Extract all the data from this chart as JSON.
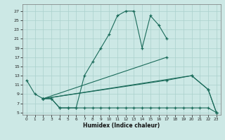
{
  "bg_color": "#cce8e5",
  "grid_color": "#aad0cc",
  "line_color": "#1a6b5a",
  "xlabel": "Humidex (Indice chaleur)",
  "xlim": [
    -0.5,
    23.5
  ],
  "ylim": [
    4.5,
    28.5
  ],
  "xtick_vals": [
    0,
    1,
    2,
    3,
    4,
    5,
    6,
    7,
    8,
    9,
    10,
    11,
    12,
    13,
    14,
    15,
    16,
    17,
    18,
    19,
    20,
    21,
    22,
    23
  ],
  "ytick_vals": [
    5,
    7,
    9,
    11,
    13,
    15,
    17,
    19,
    21,
    23,
    25,
    27
  ],
  "curve1_x": [
    0,
    1,
    2,
    3,
    4,
    5,
    6,
    7,
    8,
    9,
    10,
    11,
    12,
    13,
    14,
    15,
    16,
    17
  ],
  "curve1_y": [
    12,
    9,
    8,
    8,
    6,
    6,
    6,
    13,
    16,
    19,
    22,
    26,
    27,
    27,
    19,
    26,
    24,
    21
  ],
  "curve2_x": [
    2,
    17
  ],
  "curve2_y": [
    8,
    17
  ],
  "curve3_x": [
    2,
    20,
    22,
    23
  ],
  "curve3_y": [
    8,
    13,
    10,
    5
  ],
  "curve4_x": [
    2,
    17,
    20,
    22,
    23
  ],
  "curve4_y": [
    8,
    12,
    13,
    10,
    5
  ],
  "curve5_x": [
    2,
    3,
    4,
    5,
    6,
    7,
    8,
    9,
    10,
    11,
    12,
    13,
    14,
    15,
    16,
    17,
    18,
    19,
    20,
    21,
    22,
    23
  ],
  "curve5_y": [
    8,
    8,
    6,
    6,
    6,
    6,
    6,
    6,
    6,
    6,
    6,
    6,
    6,
    6,
    6,
    6,
    6,
    6,
    6,
    6,
    6,
    5
  ]
}
